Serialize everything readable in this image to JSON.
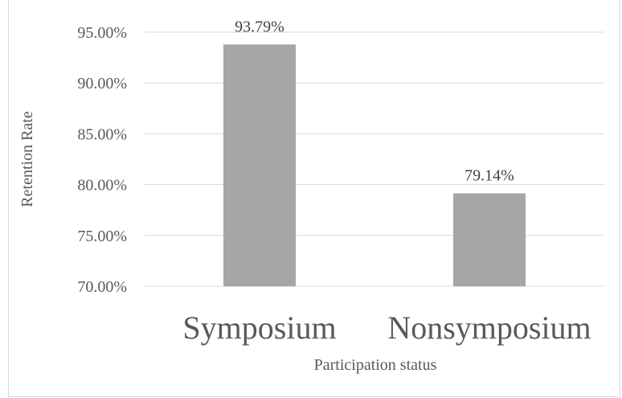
{
  "chart_data": {
    "type": "bar",
    "categories": [
      "Symposium",
      "Nonsymposium"
    ],
    "values": [
      93.79,
      79.14
    ],
    "data_labels": [
      "93.79%",
      "79.14%"
    ],
    "title": "",
    "xlabel": "Participation status",
    "ylabel": "Retention Rate",
    "ylim": [
      70,
      95
    ],
    "yticks": [
      70,
      75,
      80,
      85,
      90,
      95
    ],
    "ytick_labels": [
      "70.00%",
      "75.00%",
      "80.00%",
      "85.00%",
      "90.00%",
      "95.00%"
    ],
    "grid": true,
    "legend": "none",
    "bar_color": "#a6a6a6",
    "grid_color": "#d9d9d9"
  }
}
